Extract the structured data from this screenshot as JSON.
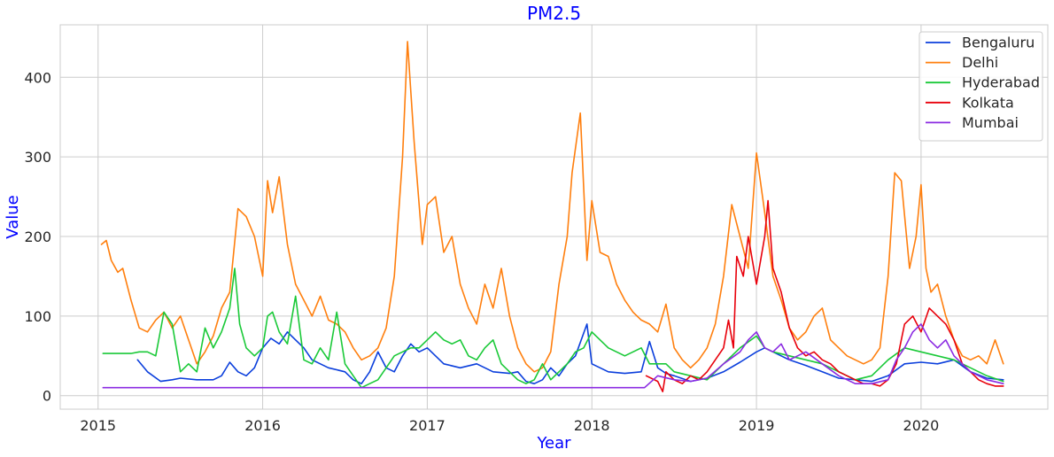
{
  "chart_data": {
    "type": "line",
    "title": "PM2.5",
    "xlabel": "Year",
    "ylabel": "Value",
    "title_color": "#0000ff",
    "label_color": "#0000ff",
    "xlim": [
      2014.77,
      2020.77
    ],
    "ylim": [
      -17,
      466
    ],
    "xticks": [
      2015,
      2016,
      2017,
      2018,
      2019,
      2020
    ],
    "yticks": [
      0,
      100,
      200,
      300,
      400
    ],
    "grid": true,
    "legend_position": "top-right",
    "series": [
      {
        "name": "Bengaluru",
        "color": "#0b3fdc",
        "x": [
          2015.24,
          2015.3,
          2015.38,
          2015.45,
          2015.5,
          2015.6,
          2015.7,
          2015.75,
          2015.8,
          2015.85,
          2015.9,
          2015.95,
          2016.0,
          2016.05,
          2016.1,
          2016.15,
          2016.2,
          2016.25,
          2016.3,
          2016.4,
          2016.5,
          2016.55,
          2016.6,
          2016.65,
          2016.7,
          2016.75,
          2016.8,
          2016.85,
          2016.9,
          2016.95,
          2017.0,
          2017.1,
          2017.2,
          2017.3,
          2017.4,
          2017.5,
          2017.55,
          2017.6,
          2017.65,
          2017.7,
          2017.75,
          2017.8,
          2017.85,
          2017.9,
          2017.97,
          2018.0,
          2018.05,
          2018.1,
          2018.2,
          2018.3,
          2018.35,
          2018.4,
          2018.45,
          2018.5,
          2018.6,
          2018.7,
          2018.8,
          2018.9,
          2019.0,
          2019.05,
          2019.1,
          2019.2,
          2019.3,
          2019.4,
          2019.5,
          2019.6,
          2019.7,
          2019.8,
          2019.9,
          2020.0,
          2020.1,
          2020.2,
          2020.3,
          2020.4,
          2020.5
        ],
        "y": [
          45,
          30,
          18,
          20,
          22,
          20,
          20,
          25,
          42,
          30,
          25,
          35,
          60,
          72,
          65,
          80,
          70,
          60,
          45,
          35,
          30,
          20,
          15,
          30,
          55,
          35,
          30,
          50,
          65,
          55,
          60,
          40,
          35,
          40,
          30,
          28,
          30,
          18,
          15,
          20,
          35,
          25,
          40,
          50,
          90,
          40,
          35,
          30,
          28,
          30,
          68,
          35,
          28,
          25,
          18,
          22,
          30,
          42,
          55,
          60,
          55,
          45,
          38,
          30,
          22,
          20,
          18,
          25,
          40,
          42,
          40,
          45,
          30,
          22,
          20
        ]
      },
      {
        "name": "Delhi",
        "color": "#ff7f0e",
        "x": [
          2015.02,
          2015.05,
          2015.08,
          2015.12,
          2015.15,
          2015.2,
          2015.25,
          2015.3,
          2015.35,
          2015.4,
          2015.45,
          2015.5,
          2015.55,
          2015.6,
          2015.65,
          2015.7,
          2015.75,
          2015.8,
          2015.85,
          2015.9,
          2015.95,
          2016.0,
          2016.03,
          2016.06,
          2016.1,
          2016.15,
          2016.2,
          2016.25,
          2016.3,
          2016.35,
          2016.4,
          2016.45,
          2016.5,
          2016.55,
          2016.6,
          2016.65,
          2016.7,
          2016.75,
          2016.8,
          2016.85,
          2016.88,
          2016.92,
          2016.97,
          2017.0,
          2017.05,
          2017.1,
          2017.15,
          2017.2,
          2017.25,
          2017.3,
          2017.35,
          2017.4,
          2017.45,
          2017.5,
          2017.55,
          2017.6,
          2017.65,
          2017.7,
          2017.75,
          2017.8,
          2017.85,
          2017.88,
          2017.93,
          2017.97,
          2018.0,
          2018.05,
          2018.1,
          2018.15,
          2018.2,
          2018.25,
          2018.3,
          2018.35,
          2018.4,
          2018.45,
          2018.5,
          2018.55,
          2018.6,
          2018.65,
          2018.7,
          2018.75,
          2018.8,
          2018.85,
          2018.9,
          2018.95,
          2019.0,
          2019.05,
          2019.1,
          2019.15,
          2019.2,
          2019.25,
          2019.3,
          2019.35,
          2019.4,
          2019.45,
          2019.5,
          2019.55,
          2019.6,
          2019.65,
          2019.7,
          2019.75,
          2019.8,
          2019.84,
          2019.88,
          2019.93,
          2019.97,
          2020.0,
          2020.03,
          2020.06,
          2020.1,
          2020.15,
          2020.2,
          2020.25,
          2020.3,
          2020.35,
          2020.4,
          2020.45,
          2020.5
        ],
        "y": [
          190,
          195,
          170,
          155,
          160,
          120,
          85,
          80,
          95,
          105,
          85,
          100,
          70,
          40,
          55,
          75,
          110,
          130,
          235,
          225,
          200,
          150,
          270,
          230,
          275,
          190,
          140,
          120,
          100,
          125,
          95,
          90,
          80,
          60,
          45,
          50,
          60,
          85,
          150,
          300,
          445,
          320,
          190,
          240,
          250,
          180,
          200,
          140,
          110,
          90,
          140,
          110,
          160,
          100,
          60,
          40,
          30,
          35,
          55,
          140,
          200,
          280,
          355,
          170,
          245,
          180,
          175,
          140,
          120,
          105,
          95,
          90,
          80,
          115,
          60,
          45,
          35,
          45,
          60,
          90,
          150,
          240,
          200,
          160,
          305,
          230,
          150,
          120,
          85,
          70,
          80,
          100,
          110,
          70,
          60,
          50,
          45,
          40,
          45,
          60,
          150,
          280,
          270,
          160,
          200,
          265,
          160,
          130,
          140,
          100,
          70,
          50,
          45,
          50,
          40,
          70,
          40
        ]
      },
      {
        "name": "Hyderabad",
        "color": "#1ac938",
        "x": [
          2015.03,
          2015.1,
          2015.2,
          2015.25,
          2015.3,
          2015.35,
          2015.4,
          2015.45,
          2015.5,
          2015.55,
          2015.6,
          2015.65,
          2015.7,
          2015.75,
          2015.8,
          2015.83,
          2015.86,
          2015.9,
          2015.95,
          2016.0,
          2016.03,
          2016.06,
          2016.1,
          2016.15,
          2016.2,
          2016.25,
          2016.3,
          2016.35,
          2016.4,
          2016.45,
          2016.5,
          2016.55,
          2016.6,
          2016.65,
          2016.7,
          2016.75,
          2016.8,
          2016.85,
          2016.9,
          2016.95,
          2017.0,
          2017.05,
          2017.1,
          2017.15,
          2017.2,
          2017.25,
          2017.3,
          2017.35,
          2017.4,
          2017.45,
          2017.5,
          2017.55,
          2017.6,
          2017.65,
          2017.7,
          2017.75,
          2017.8,
          2017.85,
          2017.9,
          2017.95,
          2018.0,
          2018.05,
          2018.1,
          2018.15,
          2018.2,
          2018.25,
          2018.3,
          2018.35,
          2018.4,
          2018.45,
          2018.5,
          2018.6,
          2018.7,
          2018.8,
          2018.9,
          2019.0,
          2019.05,
          2019.1,
          2019.2,
          2019.3,
          2019.4,
          2019.5,
          2019.6,
          2019.7,
          2019.8,
          2019.9,
          2020.0,
          2020.1,
          2020.2,
          2020.3,
          2020.4,
          2020.5
        ],
        "y": [
          53,
          53,
          53,
          55,
          55,
          50,
          105,
          90,
          30,
          40,
          30,
          85,
          60,
          80,
          110,
          160,
          90,
          60,
          50,
          60,
          100,
          105,
          80,
          65,
          125,
          45,
          40,
          60,
          45,
          105,
          40,
          25,
          10,
          15,
          20,
          35,
          50,
          55,
          60,
          60,
          70,
          80,
          70,
          65,
          70,
          50,
          45,
          60,
          70,
          40,
          30,
          20,
          15,
          20,
          40,
          20,
          30,
          40,
          55,
          60,
          80,
          70,
          60,
          55,
          50,
          55,
          60,
          40,
          40,
          40,
          30,
          25,
          20,
          40,
          60,
          75,
          60,
          55,
          50,
          45,
          40,
          30,
          20,
          25,
          45,
          60,
          55,
          50,
          45,
          35,
          25,
          18
        ]
      },
      {
        "name": "Kolkata",
        "color": "#e8000b",
        "x": [
          2018.33,
          2018.4,
          2018.43,
          2018.45,
          2018.5,
          2018.55,
          2018.6,
          2018.65,
          2018.7,
          2018.75,
          2018.8,
          2018.83,
          2018.86,
          2018.88,
          2018.92,
          2018.95,
          2019.0,
          2019.05,
          2019.07,
          2019.1,
          2019.15,
          2019.2,
          2019.25,
          2019.3,
          2019.35,
          2019.4,
          2019.45,
          2019.5,
          2019.55,
          2019.6,
          2019.65,
          2019.7,
          2019.75,
          2019.8,
          2019.85,
          2019.9,
          2019.95,
          2020.0,
          2020.05,
          2020.1,
          2020.15,
          2020.2,
          2020.25,
          2020.3,
          2020.35,
          2020.4,
          2020.45,
          2020.5
        ],
        "y": [
          25,
          18,
          5,
          30,
          20,
          15,
          25,
          20,
          30,
          45,
          60,
          95,
          60,
          175,
          150,
          200,
          140,
          200,
          245,
          160,
          130,
          85,
          60,
          50,
          55,
          45,
          40,
          30,
          25,
          20,
          15,
          15,
          12,
          20,
          40,
          90,
          100,
          80,
          110,
          100,
          90,
          70,
          40,
          30,
          20,
          15,
          12,
          12
        ]
      },
      {
        "name": "Mumbai",
        "color": "#8b2be2",
        "x": [
          2015.03,
          2015.5,
          2016.0,
          2016.5,
          2017.0,
          2017.5,
          2018.0,
          2018.32,
          2018.4,
          2018.5,
          2018.6,
          2018.7,
          2018.8,
          2018.9,
          2018.95,
          2019.0,
          2019.05,
          2019.1,
          2019.15,
          2019.2,
          2019.3,
          2019.4,
          2019.5,
          2019.6,
          2019.7,
          2019.8,
          2019.85,
          2019.9,
          2019.95,
          2020.0,
          2020.05,
          2020.1,
          2020.15,
          2020.2,
          2020.3,
          2020.4,
          2020.5
        ],
        "y": [
          10,
          10,
          10,
          10,
          10,
          10,
          10,
          10,
          25,
          20,
          18,
          22,
          40,
          55,
          70,
          80,
          60,
          55,
          65,
          45,
          55,
          40,
          25,
          15,
          15,
          20,
          45,
          60,
          80,
          90,
          70,
          60,
          70,
          50,
          30,
          20,
          15
        ]
      }
    ]
  }
}
